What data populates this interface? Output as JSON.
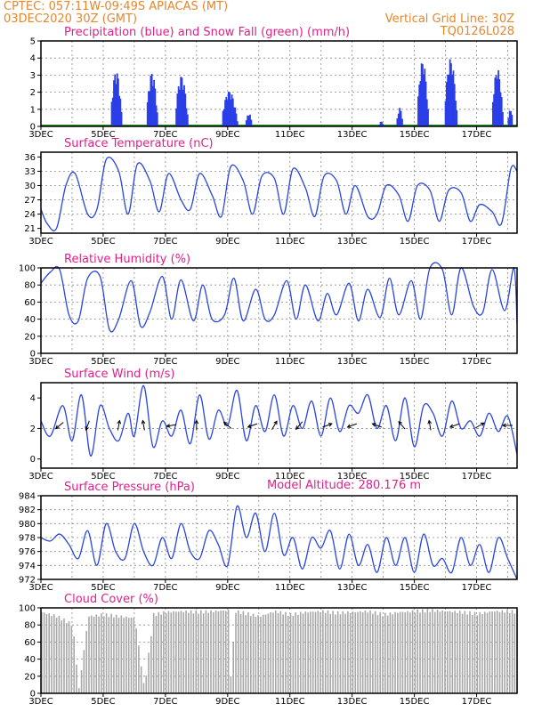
{
  "header": {
    "line1": "CPTEC:   057:11W-09:49S   APIACAS (MT)",
    "line2_left": "03DEC2020 30Z (GMT)",
    "line2_right": "Vertical Grid Line: 30Z",
    "model_code": "TQ0126L028"
  },
  "colors": {
    "header": "#e8862a",
    "title": "#e0208a",
    "precip": "#2a3fe8",
    "snow": "#1a9a1a",
    "line": "#2a45e0",
    "cloud": "#a8a8a8"
  },
  "chart_data": [
    {
      "type": "bar",
      "title": "Precipitation (blue) and Snow Fall (green) (mm/h)",
      "x_ticks": [
        "3DEC",
        "5DEC",
        "7DEC",
        "9DEC",
        "11DEC",
        "13DEC",
        "15DEC",
        "17DEC"
      ],
      "ylim": [
        0,
        5
      ],
      "yticks": [
        0,
        1,
        2,
        3,
        4,
        5
      ],
      "grid": true,
      "x_range_days": [
        0,
        15.3
      ],
      "bursts": [
        {
          "day": 2.45,
          "width": 0.35,
          "peak": 3.3
        },
        {
          "day": 3.6,
          "width": 0.35,
          "peak": 3.2
        },
        {
          "day": 4.55,
          "width": 0.4,
          "peak": 3.0
        },
        {
          "day": 6.1,
          "width": 0.5,
          "peak": 2.1
        },
        {
          "day": 6.7,
          "width": 0.2,
          "peak": 0.8
        },
        {
          "day": 10.95,
          "width": 0.15,
          "peak": 0.3
        },
        {
          "day": 11.55,
          "width": 0.2,
          "peak": 1.1
        },
        {
          "day": 12.3,
          "width": 0.35,
          "peak": 3.9
        },
        {
          "day": 13.2,
          "width": 0.4,
          "peak": 4.0
        },
        {
          "day": 14.7,
          "width": 0.35,
          "peak": 3.4
        },
        {
          "day": 15.1,
          "width": 0.15,
          "peak": 1.1
        }
      ],
      "snow": 0
    },
    {
      "type": "line",
      "title": "Surface Temperature (nC)",
      "x_ticks": [
        "3DEC",
        "5DEC",
        "7DEC",
        "9DEC",
        "11DEC",
        "13DEC",
        "15DEC",
        "17DEC"
      ],
      "ylim": [
        20,
        37
      ],
      "yticks": [
        21,
        24,
        27,
        30,
        33,
        36
      ],
      "grid": true,
      "x": [
        0,
        0.2,
        0.5,
        0.8,
        1.1,
        1.5,
        1.8,
        2.1,
        2.5,
        2.8,
        3.1,
        3.5,
        3.8,
        4.1,
        4.5,
        4.8,
        5.1,
        5.5,
        5.8,
        6.1,
        6.5,
        6.8,
        7.1,
        7.5,
        7.8,
        8.1,
        8.5,
        8.8,
        9.1,
        9.5,
        9.8,
        10.1,
        10.5,
        10.8,
        11.1,
        11.5,
        11.8,
        12.1,
        12.5,
        12.8,
        13.1,
        13.5,
        13.8,
        14.1,
        14.5,
        14.8,
        15.1,
        15.3
      ],
      "values": [
        25,
        22,
        21,
        30,
        32.5,
        24,
        25,
        35.5,
        33,
        24,
        34.5,
        31,
        24.5,
        32.5,
        27,
        25,
        32.5,
        28,
        23.5,
        34,
        31,
        24,
        32,
        31.5,
        24,
        33.5,
        29.5,
        23.5,
        32,
        31,
        24,
        30,
        23.5,
        24,
        30,
        28,
        22.5,
        30,
        29,
        22.5,
        29,
        28.5,
        22.5,
        26,
        24.5,
        22,
        33.5,
        33
      ]
    },
    {
      "type": "line",
      "title": "Relative Humidity (%)",
      "x_ticks": [
        "3DEC",
        "5DEC",
        "7DEC",
        "9DEC",
        "11DEC",
        "13DEC",
        "15DEC",
        "17DEC"
      ],
      "ylim": [
        0,
        100
      ],
      "yticks": [
        0,
        20,
        40,
        60,
        80,
        100
      ],
      "grid": true,
      "x": [
        0,
        0.3,
        0.6,
        0.9,
        1.2,
        1.5,
        1.9,
        2.2,
        2.5,
        2.9,
        3.2,
        3.5,
        3.9,
        4.2,
        4.5,
        4.9,
        5.2,
        5.5,
        5.9,
        6.2,
        6.5,
        6.9,
        7.2,
        7.5,
        7.9,
        8.2,
        8.5,
        8.9,
        9.2,
        9.5,
        9.9,
        10.2,
        10.5,
        10.9,
        11.2,
        11.5,
        11.9,
        12.2,
        12.5,
        12.9,
        13.2,
        13.5,
        13.9,
        14.2,
        14.5,
        14.9,
        15.2,
        15.3
      ],
      "values": [
        82,
        95,
        98,
        45,
        38,
        88,
        90,
        28,
        40,
        85,
        32,
        48,
        90,
        40,
        86,
        38,
        80,
        40,
        45,
        88,
        38,
        75,
        40,
        45,
        85,
        40,
        80,
        38,
        70,
        45,
        82,
        38,
        75,
        42,
        88,
        45,
        85,
        40,
        100,
        98,
        45,
        100,
        55,
        48,
        98,
        50,
        100,
        35
      ]
    },
    {
      "type": "line",
      "title": "Surface Wind (m/s)",
      "x_ticks": [
        "3DEC",
        "5DEC",
        "7DEC",
        "9DEC",
        "11DEC",
        "13DEC",
        "15DEC",
        "17DEC"
      ],
      "ylim": [
        -0.6,
        5
      ],
      "yticks": [
        0,
        2,
        4
      ],
      "grid": true,
      "x": [
        0,
        0.3,
        0.7,
        1.0,
        1.3,
        1.6,
        1.9,
        2.2,
        2.5,
        2.8,
        3.0,
        3.3,
        3.6,
        3.9,
        4.2,
        4.5,
        4.8,
        5.1,
        5.4,
        5.7,
        6.0,
        6.3,
        6.6,
        6.9,
        7.2,
        7.5,
        7.8,
        8.1,
        8.4,
        8.7,
        9.0,
        9.3,
        9.6,
        9.9,
        10.2,
        10.5,
        10.8,
        11.1,
        11.4,
        11.7,
        12.0,
        12.3,
        12.6,
        12.9,
        13.2,
        13.5,
        13.8,
        14.1,
        14.4,
        14.7,
        15.0,
        15.3
      ],
      "values": [
        2.5,
        1.5,
        3.5,
        1.2,
        4.2,
        0.2,
        3.5,
        2.0,
        1.2,
        3.0,
        1.5,
        4.8,
        0.8,
        2.5,
        1.5,
        3.2,
        1.0,
        4.2,
        1.3,
        3.2,
        2.2,
        4.5,
        1.2,
        3.5,
        1.8,
        4.2,
        1.5,
        3.5,
        2.0,
        3.8,
        1.5,
        4.0,
        1.8,
        3.5,
        3.0,
        4.2,
        2.0,
        3.5,
        1.2,
        4.0,
        0.8,
        3.5,
        3.0,
        1.5,
        3.8,
        2.0,
        2.5,
        1.5,
        3.0,
        1.8,
        2.8,
        0.3
      ],
      "arrow_days": [
        0.6,
        1.5,
        2.5,
        3.3,
        4.2,
        5.0,
        6.0,
        6.8,
        7.5,
        8.3,
        9.2,
        10.0,
        10.8,
        11.6,
        12.5,
        13.3,
        14.1,
        15.0
      ],
      "arrow_dirs": [
        220,
        250,
        80,
        100,
        190,
        90,
        140,
        200,
        60,
        230,
        20,
        200,
        160,
        130,
        100,
        200,
        30,
        180
      ]
    },
    {
      "type": "line",
      "title": "Surface Pressure (hPa)",
      "annotation": "Model Altitude: 280.176 m",
      "x_ticks": [
        "3DEC",
        "5DEC",
        "7DEC",
        "9DEC",
        "11DEC",
        "13DEC",
        "15DEC",
        "17DEC"
      ],
      "ylim": [
        972,
        984
      ],
      "yticks": [
        972,
        974,
        976,
        978,
        980,
        982,
        984
      ],
      "grid": true,
      "x": [
        0,
        0.3,
        0.6,
        0.9,
        1.2,
        1.5,
        1.8,
        2.1,
        2.4,
        2.7,
        3.0,
        3.3,
        3.6,
        3.9,
        4.2,
        4.5,
        4.8,
        5.1,
        5.4,
        5.7,
        6.0,
        6.3,
        6.6,
        6.9,
        7.2,
        7.5,
        7.8,
        8.1,
        8.4,
        8.7,
        9.0,
        9.3,
        9.6,
        9.9,
        10.2,
        10.5,
        10.8,
        11.1,
        11.4,
        11.7,
        12.0,
        12.3,
        12.6,
        12.9,
        13.2,
        13.5,
        13.8,
        14.1,
        14.4,
        14.7,
        15.0,
        15.3
      ],
      "values": [
        978,
        977.5,
        978.5,
        977,
        975,
        979,
        974,
        980,
        976,
        975,
        980,
        976,
        974,
        978,
        975,
        980,
        976,
        975,
        979,
        977,
        974,
        982.5,
        978,
        981.5,
        976,
        981.5,
        975.5,
        978,
        973.5,
        978,
        976.5,
        979,
        973.5,
        978.5,
        974,
        977,
        973,
        978,
        974,
        978,
        973,
        978.5,
        974,
        975,
        973,
        978,
        974,
        977,
        973,
        978,
        975,
        972
      ]
    },
    {
      "type": "area",
      "title": "Cloud Cover (%)",
      "x_ticks": [
        "3DEC",
        "5DEC",
        "7DEC",
        "9DEC",
        "11DEC",
        "13DEC",
        "15DEC",
        "17DEC"
      ],
      "ylim": [
        0,
        100
      ],
      "yticks": [
        0,
        20,
        40,
        60,
        80,
        100
      ],
      "grid": true,
      "x": [
        0,
        0.5,
        1.0,
        1.2,
        1.5,
        2.0,
        2.5,
        3.0,
        3.3,
        3.6,
        4.0,
        4.5,
        5.0,
        5.5,
        6.0,
        6.1,
        6.2,
        6.5,
        7.0,
        7.5,
        8.0,
        8.5,
        9.0,
        9.5,
        10.0,
        10.5,
        11.0,
        11.5,
        12.0,
        12.5,
        13.0,
        13.5,
        14.0,
        14.5,
        15.0,
        15.3
      ],
      "values": [
        95,
        90,
        80,
        5,
        90,
        92,
        90,
        88,
        5,
        92,
        95,
        96,
        95,
        96,
        97,
        2,
        96,
        94,
        90,
        96,
        92,
        95,
        96,
        94,
        95,
        96,
        92,
        95,
        96,
        97,
        96,
        95,
        93,
        96,
        96,
        95
      ]
    }
  ]
}
